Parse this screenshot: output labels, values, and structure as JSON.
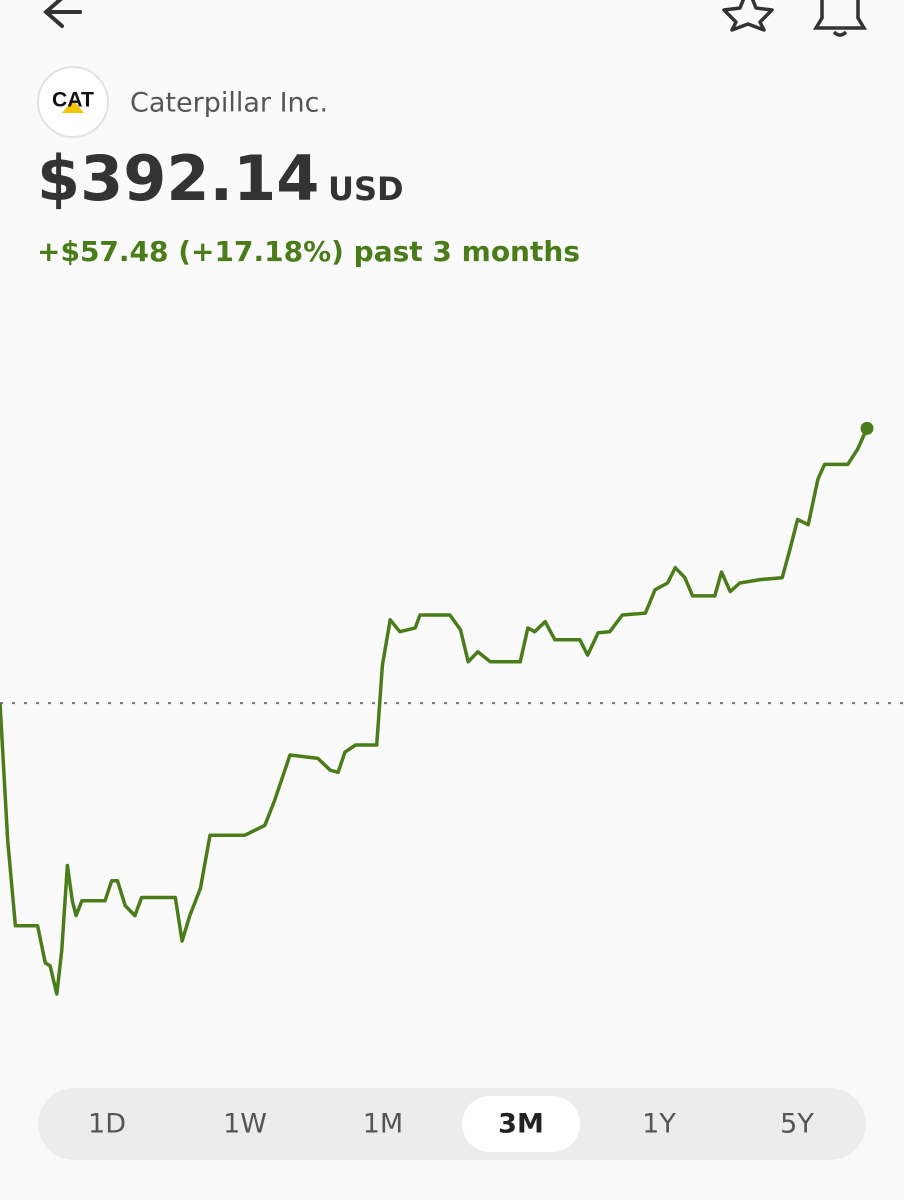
{
  "header": {
    "logo": "CAT",
    "company": "Caterpillar Inc.",
    "price": "$392.14",
    "currency": "USD",
    "change": "+$57.48 (+17.18%) past 3 months"
  },
  "chart": {
    "type": "line",
    "color": "#4a7c1a",
    "baseline": 334.66,
    "x": [
      0,
      0.8,
      1.6,
      3.9,
      4.7,
      5.2,
      5.9,
      6.4,
      7.0,
      7.5,
      7.9,
      8.5,
      10.9,
      11.6,
      12.2,
      13.0,
      14.0,
      14.7,
      18.2,
      18.9,
      19.7,
      20.8,
      21.8,
      25.4,
      27.5,
      28.5,
      30.1,
      33.0,
      34.3,
      35.1,
      35.8,
      36.9,
      39.1,
      39.7,
      40.5,
      41.5,
      43.1,
      43.6,
      46.7,
      47.8,
      48.6,
      49.6,
      50.9,
      54.0,
      54.8,
      55.5,
      56.6,
      57.6,
      60.2,
      61.0,
      62.1,
      63.3,
      64.6,
      67.0,
      68.0,
      69.3,
      70.1,
      71.1,
      71.9,
      74.2,
      74.9,
      75.8,
      76.8,
      78.9,
      81.2,
      82.0,
      82.8,
      83.9,
      84.9,
      85.6,
      88.0,
      89.0,
      90
    ],
    "values": [
      334.66,
      305.9,
      288.1,
      288.1,
      280.3,
      279.7,
      273.8,
      282.8,
      300.7,
      293.3,
      290.2,
      293.3,
      293.3,
      297.5,
      297.5,
      292.3,
      290.2,
      294.0,
      294.0,
      284.9,
      290.2,
      295.9,
      307.0,
      307.0,
      309.1,
      314.3,
      323.8,
      323.1,
      320.6,
      320.2,
      324.4,
      325.9,
      325.9,
      342.6,
      352.1,
      349.6,
      350.4,
      353.1,
      353.1,
      350.0,
      343.3,
      345.4,
      343.3,
      343.3,
      350.4,
      349.6,
      351.7,
      347.9,
      347.9,
      344.7,
      349.4,
      349.6,
      353.1,
      353.5,
      358.4,
      359.8,
      363.0,
      360.9,
      357.1,
      357.1,
      362.1,
      358.0,
      359.8,
      360.5,
      360.9,
      366.8,
      373.1,
      372.0,
      381.5,
      384.6,
      384.6,
      387.7,
      392.14
    ],
    "xlim": [
      0,
      90
    ],
    "ylim": [
      260,
      419
    ]
  },
  "tabs": [
    "1D",
    "1W",
    "1M",
    "3M",
    "1Y",
    "5Y"
  ],
  "selected_tab": 3
}
